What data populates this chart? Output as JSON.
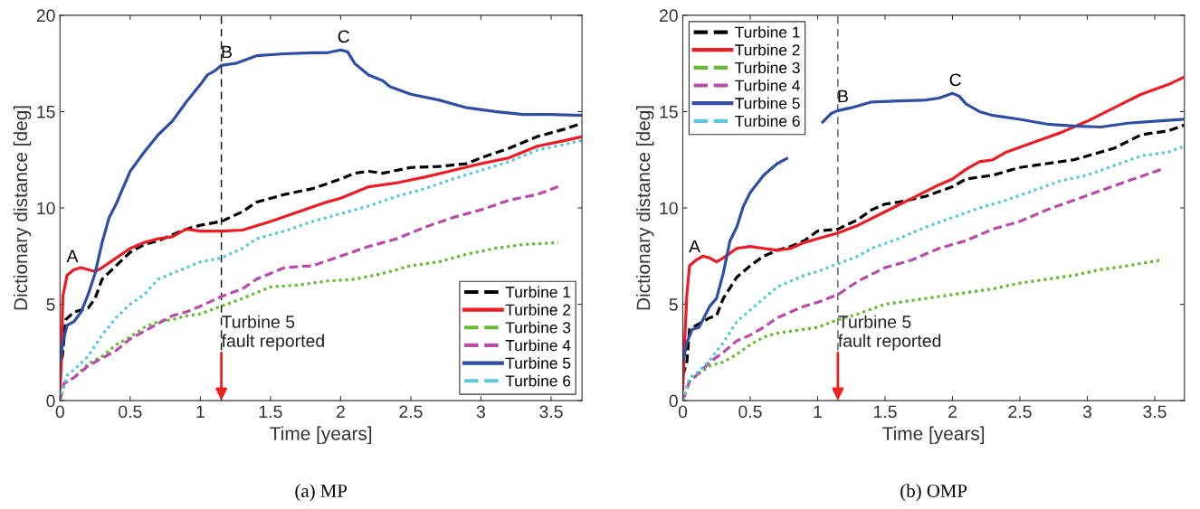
{
  "chart_data": [
    {
      "type": "line",
      "title": "(a) MP",
      "xlabel": "Time [years]",
      "ylabel": "Dictionary distance [deg]",
      "xlim": [
        0,
        3.72
      ],
      "ylim": [
        0,
        20
      ],
      "xticks": [
        0,
        0.5,
        1,
        1.5,
        2,
        2.5,
        3,
        3.5
      ],
      "yticks": [
        0,
        5,
        10,
        15,
        20
      ],
      "grid": false,
      "legend": "bottom right",
      "ref_lines": [
        {
          "axis": "x",
          "value": 1.15,
          "color": "#000000",
          "line_style": "dashed"
        }
      ],
      "annotations": [
        {
          "text": "A",
          "x": 0.1,
          "y": 6.8
        },
        {
          "text": "B",
          "x": 1.2,
          "y": 17.4
        },
        {
          "text": "C",
          "x": 2.03,
          "y": 18.2
        },
        {
          "text": "Turbine 5\nfault reported",
          "x": 1.15,
          "y": 0
        }
      ],
      "series": [
        {
          "name": "Turbine 1",
          "color": "#000000",
          "line_style": "dashed",
          "x": [
            0,
            0.02,
            0.04,
            0.1,
            0.2,
            0.25,
            0.3,
            0.4,
            0.5,
            0.6,
            0.7,
            0.8,
            0.9,
            1.0,
            1.15,
            1.3,
            1.4,
            1.6,
            1.8,
            2.0,
            2.1,
            2.2,
            2.3,
            2.5,
            2.7,
            2.9,
            3.0,
            3.2,
            3.4,
            3.6,
            3.72
          ],
          "values": [
            1.5,
            2.5,
            4.2,
            4.6,
            4.8,
            5.3,
            6.3,
            7.0,
            7.7,
            8.1,
            8.3,
            8.6,
            8.9,
            9.1,
            9.3,
            9.8,
            10.3,
            10.7,
            11.0,
            11.5,
            11.8,
            11.9,
            11.8,
            12.1,
            12.15,
            12.3,
            12.6,
            13.1,
            13.7,
            14.1,
            14.4
          ]
        },
        {
          "name": "Turbine 2",
          "color": "#ed1c24",
          "line_style": "solid",
          "x": [
            0,
            0.01,
            0.02,
            0.05,
            0.1,
            0.15,
            0.2,
            0.25,
            0.3,
            0.4,
            0.5,
            0.6,
            0.7,
            0.8,
            0.9,
            1.0,
            1.15,
            1.3,
            1.5,
            1.7,
            1.9,
            2.0,
            2.2,
            2.4,
            2.6,
            2.8,
            3.0,
            3.2,
            3.4,
            3.6,
            3.72
          ],
          "values": [
            0.5,
            2.0,
            5.4,
            6.5,
            6.8,
            6.9,
            6.8,
            6.7,
            6.9,
            7.4,
            7.9,
            8.2,
            8.4,
            8.5,
            8.9,
            8.8,
            8.8,
            8.85,
            9.3,
            9.8,
            10.3,
            10.5,
            11.1,
            11.3,
            11.6,
            11.95,
            12.3,
            12.6,
            13.2,
            13.5,
            13.7
          ]
        },
        {
          "name": "Turbine 3",
          "color": "#66bb33",
          "line_style": "dotted",
          "x": [
            0,
            0.03,
            0.1,
            0.2,
            0.3,
            0.4,
            0.5,
            0.6,
            0.7,
            0.8,
            0.9,
            1.0,
            1.15,
            1.3,
            1.5,
            1.7,
            1.9,
            2.1,
            2.3,
            2.5,
            2.7,
            2.9,
            3.1,
            3.3,
            3.55
          ],
          "values": [
            0,
            0.9,
            1.2,
            1.9,
            2.3,
            2.9,
            3.3,
            3.8,
            4.1,
            4.2,
            4.4,
            4.5,
            4.9,
            5.3,
            5.9,
            6.0,
            6.2,
            6.3,
            6.6,
            7.0,
            7.2,
            7.6,
            7.9,
            8.1,
            8.2
          ]
        },
        {
          "name": "Turbine 4",
          "color": "#b84bab",
          "line_style": "dashed",
          "x": [
            0,
            0.03,
            0.1,
            0.2,
            0.3,
            0.4,
            0.5,
            0.6,
            0.7,
            0.8,
            0.9,
            1.0,
            1.15,
            1.3,
            1.4,
            1.5,
            1.6,
            1.8,
            2.0,
            2.2,
            2.4,
            2.6,
            2.8,
            3.0,
            3.2,
            3.4,
            3.55
          ],
          "values": [
            0,
            0.9,
            1.2,
            1.8,
            2.2,
            2.6,
            3.2,
            3.6,
            4.0,
            4.4,
            4.6,
            4.9,
            5.4,
            5.8,
            6.3,
            6.6,
            6.9,
            7.0,
            7.5,
            8.0,
            8.4,
            9.0,
            9.5,
            9.9,
            10.4,
            10.7,
            11.1
          ]
        },
        {
          "name": "Turbine 5",
          "color": "#2e4ea3",
          "line_style": "solid",
          "x": [
            0,
            0.02,
            0.05,
            0.1,
            0.15,
            0.2,
            0.25,
            0.3,
            0.35,
            0.4,
            0.5,
            0.6,
            0.7,
            0.8,
            0.9,
            1.0,
            1.05,
            1.1,
            1.15,
            1.25,
            1.4,
            1.6,
            1.8,
            1.9,
            2.0,
            2.05,
            2.1,
            2.2,
            2.3,
            2.35,
            2.5,
            2.7,
            2.9,
            3.1,
            3.3,
            3.5,
            3.72
          ],
          "values": [
            2.0,
            3.0,
            3.9,
            4.1,
            4.6,
            5.5,
            6.6,
            8.2,
            9.5,
            10.2,
            11.9,
            12.9,
            13.8,
            14.5,
            15.5,
            16.4,
            16.9,
            17.1,
            17.4,
            17.5,
            17.9,
            18.0,
            18.05,
            18.05,
            18.2,
            18.1,
            17.5,
            16.9,
            16.6,
            16.3,
            15.9,
            15.6,
            15.2,
            15.0,
            14.85,
            14.85,
            14.8
          ]
        },
        {
          "name": "Turbine 6",
          "color": "#5bc8db",
          "line_style": "dotted",
          "x": [
            0,
            0.05,
            0.1,
            0.2,
            0.3,
            0.4,
            0.5,
            0.6,
            0.7,
            0.8,
            0.9,
            1.0,
            1.15,
            1.3,
            1.4,
            1.6,
            1.8,
            2.0,
            2.2,
            2.4,
            2.6,
            2.8,
            3.0,
            3.2,
            3.4,
            3.6,
            3.72
          ],
          "values": [
            0,
            1.3,
            1.6,
            2.3,
            3.4,
            4.3,
            5.0,
            5.5,
            6.3,
            6.6,
            6.9,
            7.2,
            7.4,
            7.9,
            8.4,
            8.8,
            9.3,
            9.7,
            10.1,
            10.6,
            11.0,
            11.5,
            11.95,
            12.4,
            13.0,
            13.3,
            13.5
          ]
        }
      ]
    },
    {
      "type": "line",
      "title": "(b) OMP",
      "xlabel": "Time [years]",
      "ylabel": "Dictionary distance [deg]",
      "xlim": [
        0,
        3.72
      ],
      "ylim": [
        0,
        20
      ],
      "xticks": [
        0,
        0.5,
        1,
        1.5,
        2,
        2.5,
        3,
        3.5
      ],
      "yticks": [
        0,
        5,
        10,
        15,
        20
      ],
      "grid": false,
      "legend": "top left",
      "ref_lines": [
        {
          "axis": "x",
          "value": 1.15,
          "color": "#555555",
          "line_style": "dashed"
        }
      ],
      "annotations": [
        {
          "text": "A",
          "x": 0.1,
          "y": 7.3
        },
        {
          "text": "B",
          "x": 1.2,
          "y": 15.1
        },
        {
          "text": "C",
          "x": 2.03,
          "y": 15.95
        },
        {
          "text": "Turbine 5\nfault reported",
          "x": 1.15,
          "y": 0
        }
      ],
      "series": [
        {
          "name": "Turbine 1",
          "color": "#000000",
          "line_style": "dashed",
          "x": [
            0,
            0.03,
            0.05,
            0.1,
            0.2,
            0.25,
            0.3,
            0.4,
            0.5,
            0.6,
            0.7,
            0.8,
            0.9,
            1.0,
            1.15,
            1.3,
            1.4,
            1.5,
            1.6,
            1.8,
            2.0,
            2.1,
            2.3,
            2.5,
            2.7,
            2.9,
            3.0,
            3.2,
            3.4,
            3.6,
            3.72
          ],
          "values": [
            1.3,
            2.0,
            3.7,
            3.9,
            4.3,
            4.4,
            5.3,
            6.4,
            7.0,
            7.5,
            7.8,
            8.0,
            8.3,
            8.8,
            8.9,
            9.4,
            9.9,
            10.2,
            10.3,
            10.6,
            11.1,
            11.5,
            11.7,
            12.1,
            12.3,
            12.5,
            12.7,
            13.1,
            13.8,
            14.0,
            14.3
          ]
        },
        {
          "name": "Turbine 2",
          "color": "#ed1c24",
          "line_style": "solid",
          "x": [
            0,
            0.01,
            0.03,
            0.05,
            0.1,
            0.15,
            0.2,
            0.25,
            0.3,
            0.4,
            0.5,
            0.6,
            0.7,
            0.8,
            0.9,
            1.0,
            1.15,
            1.3,
            1.5,
            1.7,
            1.9,
            2.0,
            2.1,
            2.2,
            2.3,
            2.4,
            2.6,
            2.8,
            3.0,
            3.2,
            3.4,
            3.6,
            3.72
          ],
          "values": [
            0.5,
            2.5,
            5.5,
            7.0,
            7.3,
            7.5,
            7.4,
            7.2,
            7.4,
            7.9,
            8.0,
            7.9,
            7.8,
            7.9,
            8.2,
            8.4,
            8.7,
            9.1,
            9.8,
            10.5,
            11.2,
            11.5,
            12.0,
            12.4,
            12.5,
            12.9,
            13.4,
            13.9,
            14.5,
            15.2,
            15.9,
            16.4,
            16.8
          ]
        },
        {
          "name": "Turbine 3",
          "color": "#66bb33",
          "line_style": "dotted",
          "x": [
            0,
            0.05,
            0.1,
            0.2,
            0.3,
            0.4,
            0.5,
            0.6,
            0.7,
            0.8,
            0.9,
            1.0,
            1.15,
            1.3,
            1.5,
            1.7,
            1.9,
            2.1,
            2.3,
            2.5,
            2.7,
            2.9,
            3.1,
            3.3,
            3.55
          ],
          "values": [
            0,
            1.0,
            1.3,
            1.8,
            2.0,
            2.4,
            2.9,
            3.3,
            3.5,
            3.6,
            3.7,
            3.8,
            4.2,
            4.5,
            5.0,
            5.2,
            5.4,
            5.6,
            5.8,
            6.1,
            6.3,
            6.5,
            6.8,
            7.0,
            7.3
          ]
        },
        {
          "name": "Turbine 4",
          "color": "#b84bab",
          "line_style": "dashed",
          "x": [
            0,
            0.05,
            0.1,
            0.2,
            0.3,
            0.4,
            0.5,
            0.6,
            0.7,
            0.8,
            0.9,
            1.0,
            1.15,
            1.3,
            1.5,
            1.7,
            1.9,
            2.1,
            2.3,
            2.5,
            2.7,
            2.9,
            3.1,
            3.3,
            3.55
          ],
          "values": [
            0,
            1.0,
            1.3,
            2.0,
            2.5,
            3.1,
            3.4,
            3.8,
            4.3,
            4.6,
            4.9,
            5.1,
            5.5,
            6.2,
            6.9,
            7.3,
            7.9,
            8.3,
            8.9,
            9.3,
            9.9,
            10.4,
            10.9,
            11.4,
            12.0
          ]
        },
        {
          "name": "Turbine 5",
          "color": "#2e4ea3",
          "line_style": "solid",
          "x": [
            0,
            0.03,
            0.07,
            0.12,
            0.2,
            0.25,
            0.3,
            0.35,
            0.4,
            0.45,
            0.5,
            0.6,
            0.7,
            0.78,
            0.9,
            1.03,
            1.1,
            1.15,
            1.25,
            1.4,
            1.6,
            1.8,
            1.9,
            2.0,
            2.05,
            2.1,
            2.2,
            2.3,
            2.5,
            2.7,
            2.9,
            3.1,
            3.3,
            3.5,
            3.72
          ],
          "values": [
            2.0,
            3.0,
            3.7,
            3.8,
            4.9,
            5.3,
            6.6,
            8.3,
            9.0,
            10.1,
            10.8,
            11.7,
            12.3,
            12.6,
            null,
            14.4,
            14.9,
            15.05,
            15.2,
            15.5,
            15.55,
            15.6,
            15.7,
            15.95,
            15.8,
            15.4,
            15.0,
            14.8,
            14.6,
            14.35,
            14.25,
            14.2,
            14.4,
            14.5,
            14.6
          ]
        },
        {
          "name": "Turbine 6",
          "color": "#5bc8db",
          "line_style": "dotted",
          "x": [
            0,
            0.05,
            0.1,
            0.2,
            0.3,
            0.4,
            0.5,
            0.6,
            0.7,
            0.8,
            0.9,
            1.0,
            1.15,
            1.3,
            1.4,
            1.6,
            1.8,
            2.0,
            2.2,
            2.4,
            2.6,
            2.8,
            3.0,
            3.2,
            3.4,
            3.6,
            3.72
          ],
          "values": [
            0,
            1.2,
            1.4,
            2.1,
            3.0,
            4.1,
            4.7,
            5.3,
            5.9,
            6.2,
            6.5,
            6.7,
            7.1,
            7.5,
            7.9,
            8.4,
            9.0,
            9.5,
            10.0,
            10.4,
            10.9,
            11.4,
            11.7,
            12.2,
            12.7,
            12.9,
            13.2
          ]
        }
      ]
    }
  ]
}
